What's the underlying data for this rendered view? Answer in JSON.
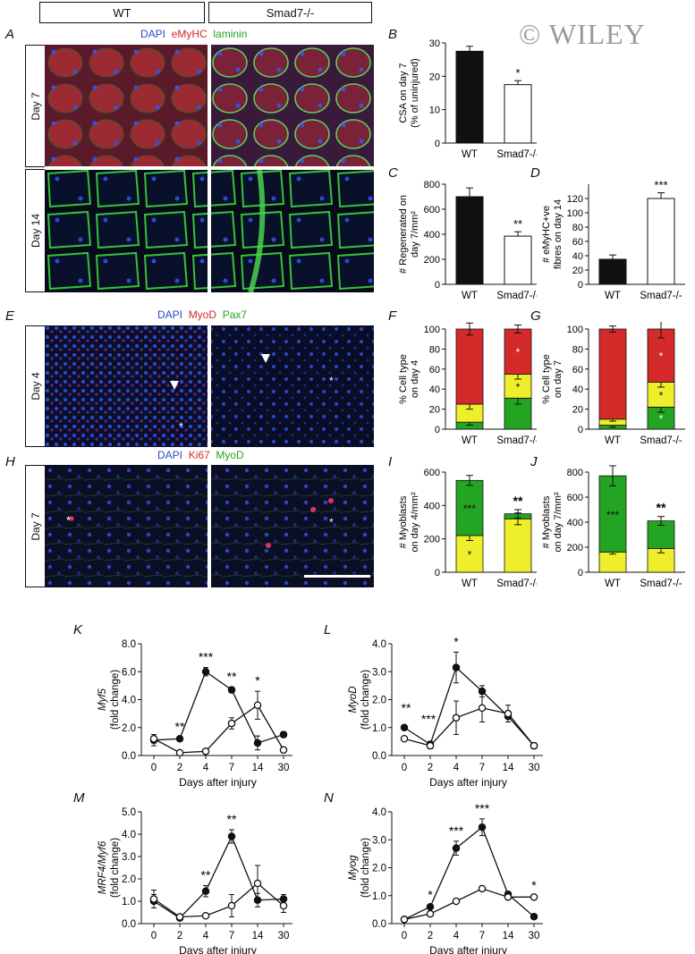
{
  "header": {
    "wt": "WT",
    "ko": "Smad7-/-"
  },
  "watermark": "© WILEY",
  "panel_letters": [
    "A",
    "B",
    "C",
    "D",
    "E",
    "F",
    "G",
    "H",
    "I",
    "J",
    "K",
    "L",
    "M",
    "N"
  ],
  "stains": {
    "A": [
      "DAPI",
      "eMyHC",
      "laminin"
    ],
    "E": [
      "DAPI",
      "MyoD",
      "Pax7"
    ],
    "H": [
      "DAPI",
      "Ki67",
      "MyoD"
    ]
  },
  "day_labels": {
    "A1": "Day 7",
    "A2": "Day 14",
    "E": "Day 4",
    "H": "Day 7"
  },
  "colors": {
    "dapi": "#2b49c8",
    "red": "#d42a2a",
    "green": "#23a423",
    "yellow": "#eeee2a",
    "black": "#111111"
  },
  "chart_data": [
    {
      "id": "B",
      "type": "bar",
      "categories": [
        "WT",
        "Smad7-/-"
      ],
      "values": [
        27.5,
        17.5
      ],
      "errors": [
        1.5,
        1.2
      ],
      "ylabel": [
        "CSA on day 7",
        "(% of uninjured)"
      ],
      "ylim": [
        0,
        30
      ],
      "yticks": [
        0,
        10,
        20,
        30
      ],
      "sig": "*"
    },
    {
      "id": "C",
      "type": "bar",
      "categories": [
        "WT",
        "Smad7-/-"
      ],
      "values": [
        700,
        385
      ],
      "errors": [
        70,
        35
      ],
      "ylabel": [
        "# Regenerated on",
        "day 7/mm²"
      ],
      "ylim": [
        0,
        800
      ],
      "yticks": [
        0,
        200,
        400,
        600,
        800
      ],
      "sig": "**"
    },
    {
      "id": "D",
      "type": "bar",
      "categories": [
        "WT",
        "Smad7-/-"
      ],
      "values": [
        35,
        120
      ],
      "errors": [
        6,
        8
      ],
      "ylabel": [
        "# eMyHC+ve",
        "fibres on day 14"
      ],
      "ylim": [
        0,
        140
      ],
      "yticks": [
        0,
        20,
        40,
        60,
        80,
        100,
        120
      ],
      "sig": "***"
    },
    {
      "id": "F",
      "type": "bar",
      "stacked": true,
      "categories": [
        "WT",
        "Smad7-/-"
      ],
      "series": [
        {
          "name": "green",
          "values": [
            7,
            31
          ],
          "errors": [
            3,
            6
          ]
        },
        {
          "name": "yellow",
          "values": [
            18,
            24
          ],
          "errors": [
            5,
            5
          ]
        },
        {
          "name": "red",
          "values": [
            75,
            45
          ],
          "errors": [
            6,
            4
          ]
        }
      ],
      "segment_sig": [
        [
          "",
          ""
        ],
        [
          "",
          "*"
        ],
        [
          "",
          "*"
        ]
      ],
      "ylabel": [
        "% Cell type",
        "on day 4"
      ],
      "ylim": [
        0,
        100
      ],
      "yticks": [
        0,
        20,
        40,
        60,
        80,
        100
      ]
    },
    {
      "id": "G",
      "type": "bar",
      "stacked": true,
      "categories": [
        "WT",
        "Smad7-/-"
      ],
      "series": [
        {
          "name": "green",
          "values": [
            4,
            22
          ],
          "errors": [
            2,
            5
          ]
        },
        {
          "name": "yellow",
          "values": [
            6,
            25
          ],
          "errors": [
            2,
            5
          ]
        },
        {
          "name": "red",
          "values": [
            90,
            53
          ],
          "errors": [
            3,
            9
          ]
        }
      ],
      "segment_sig": [
        [
          "",
          "*"
        ],
        [
          "",
          "*"
        ],
        [
          "",
          "*"
        ]
      ],
      "ylabel": [
        "% Cell type",
        "on day 7"
      ],
      "ylim": [
        0,
        100
      ],
      "yticks": [
        0,
        20,
        40,
        60,
        80,
        100
      ]
    },
    {
      "id": "I",
      "type": "bar",
      "stacked": true,
      "categories": [
        "WT",
        "Smad7-/-"
      ],
      "series": [
        {
          "name": "yellow",
          "values": [
            220,
            320
          ],
          "errors": [
            30,
            35
          ]
        },
        {
          "name": "green",
          "values": [
            330,
            30
          ],
          "errors": [
            30,
            25
          ]
        }
      ],
      "segment_sig": [
        [
          "*",
          ""
        ],
        [
          "***",
          ""
        ]
      ],
      "top_sig": [
        "",
        "**"
      ],
      "ylabel": [
        "# Myoblasts",
        "on day 4/mm²"
      ],
      "ylim": [
        0,
        600
      ],
      "yticks": [
        0,
        200,
        400,
        600
      ]
    },
    {
      "id": "J",
      "type": "bar",
      "stacked": true,
      "categories": [
        "WT",
        "Smad7-/-"
      ],
      "series": [
        {
          "name": "yellow",
          "values": [
            160,
            190
          ],
          "errors": [
            15,
            35
          ]
        },
        {
          "name": "green",
          "values": [
            610,
            220
          ],
          "errors": [
            80,
            35
          ]
        }
      ],
      "segment_sig": [
        [
          "",
          ""
        ],
        [
          "***",
          ""
        ]
      ],
      "top_sig": [
        "",
        "**"
      ],
      "ylabel": [
        "# Myoblasts",
        "on day 7/mm²"
      ],
      "ylim": [
        0,
        800
      ],
      "yticks": [
        0,
        200,
        400,
        600,
        800
      ]
    },
    {
      "id": "K",
      "type": "line",
      "x": [
        "0",
        "2",
        "4",
        "7",
        "14",
        "30"
      ],
      "series": [
        {
          "name": "WT",
          "values": [
            1.1,
            1.2,
            6.0,
            4.7,
            0.9,
            1.5
          ],
          "errors": [
            0.4,
            0.1,
            0.3,
            0.2,
            0.5,
            0.2
          ]
        },
        {
          "name": "Smad7-/-",
          "values": [
            1.2,
            0.2,
            0.3,
            2.3,
            3.6,
            0.4
          ],
          "errors": [
            0.3,
            0.1,
            0.1,
            0.4,
            1.0,
            0.2
          ]
        }
      ],
      "sig": [
        "",
        "**",
        "***",
        "**",
        "*",
        ""
      ],
      "ylabel": [
        "Myf5",
        "(fold change)"
      ],
      "xlabel": "Days after injury",
      "ylim": [
        0,
        8
      ],
      "yticks": [
        "0.0",
        "2.0",
        "4.0",
        "6.0",
        "8.0"
      ]
    },
    {
      "id": "L",
      "type": "line",
      "x": [
        "0",
        "2",
        "4",
        "7",
        "14",
        "30"
      ],
      "series": [
        {
          "name": "WT",
          "values": [
            1.0,
            0.4,
            3.15,
            2.3,
            1.4,
            0.35
          ],
          "errors": [
            0.05,
            0.1,
            0.55,
            0.2,
            0.2,
            0.1
          ]
        },
        {
          "name": "Smad7-/-",
          "values": [
            0.6,
            0.35,
            1.35,
            1.7,
            1.5,
            0.35
          ],
          "errors": [
            0.05,
            0.1,
            0.6,
            0.5,
            0.3,
            0.1
          ]
        }
      ],
      "sig": [
        "**",
        "***",
        "*",
        "",
        "",
        ""
      ],
      "ylabel": [
        "MyoD",
        "(fold change)"
      ],
      "xlabel": "Days after injury",
      "ylim": [
        0,
        4
      ],
      "yticks": [
        "0.0",
        "1.0",
        "2.0",
        "3.0",
        "4.0"
      ]
    },
    {
      "id": "M",
      "type": "line",
      "x": [
        "0",
        "2",
        "4",
        "7",
        "14",
        "30"
      ],
      "series": [
        {
          "name": "WT",
          "values": [
            1.0,
            0.25,
            1.45,
            3.9,
            1.05,
            1.1
          ],
          "errors": [
            0.3,
            0.1,
            0.25,
            0.3,
            0.3,
            0.2
          ]
        },
        {
          "name": "Smad7-/-",
          "values": [
            1.1,
            0.3,
            0.35,
            0.8,
            1.8,
            0.8
          ],
          "errors": [
            0.4,
            0.1,
            0.1,
            0.5,
            0.8,
            0.3
          ]
        }
      ],
      "sig": [
        "",
        "",
        "**",
        "**",
        "",
        ""
      ],
      "ylabel": [
        "MRF4/Myf6",
        "(fold change)"
      ],
      "xlabel": "Days after injury",
      "ylim": [
        0,
        5
      ],
      "yticks": [
        "0.0",
        "1.0",
        "2.0",
        "3.0",
        "4.0",
        "5.0"
      ]
    },
    {
      "id": "N",
      "type": "line",
      "x": [
        "0",
        "2",
        "4",
        "7",
        "14",
        "30"
      ],
      "series": [
        {
          "name": "WT",
          "values": [
            0.15,
            0.6,
            2.7,
            3.45,
            1.05,
            0.25
          ],
          "errors": [
            0.05,
            0.05,
            0.25,
            0.3,
            0.1,
            0.05
          ]
        },
        {
          "name": "Smad7-/-",
          "values": [
            0.15,
            0.35,
            0.8,
            1.25,
            0.95,
            0.95
          ],
          "errors": [
            0.05,
            0.05,
            0.05,
            0.05,
            0.05,
            0.05
          ]
        }
      ],
      "sig": [
        "",
        "*",
        "***",
        "***",
        "",
        "*"
      ],
      "ylabel": [
        "Myog",
        "(fold change)"
      ],
      "xlabel": "Days after injury",
      "ylim": [
        0,
        4
      ],
      "yticks": [
        "0.0",
        "1.0",
        "2.0",
        "3.0",
        "4.0"
      ]
    }
  ]
}
